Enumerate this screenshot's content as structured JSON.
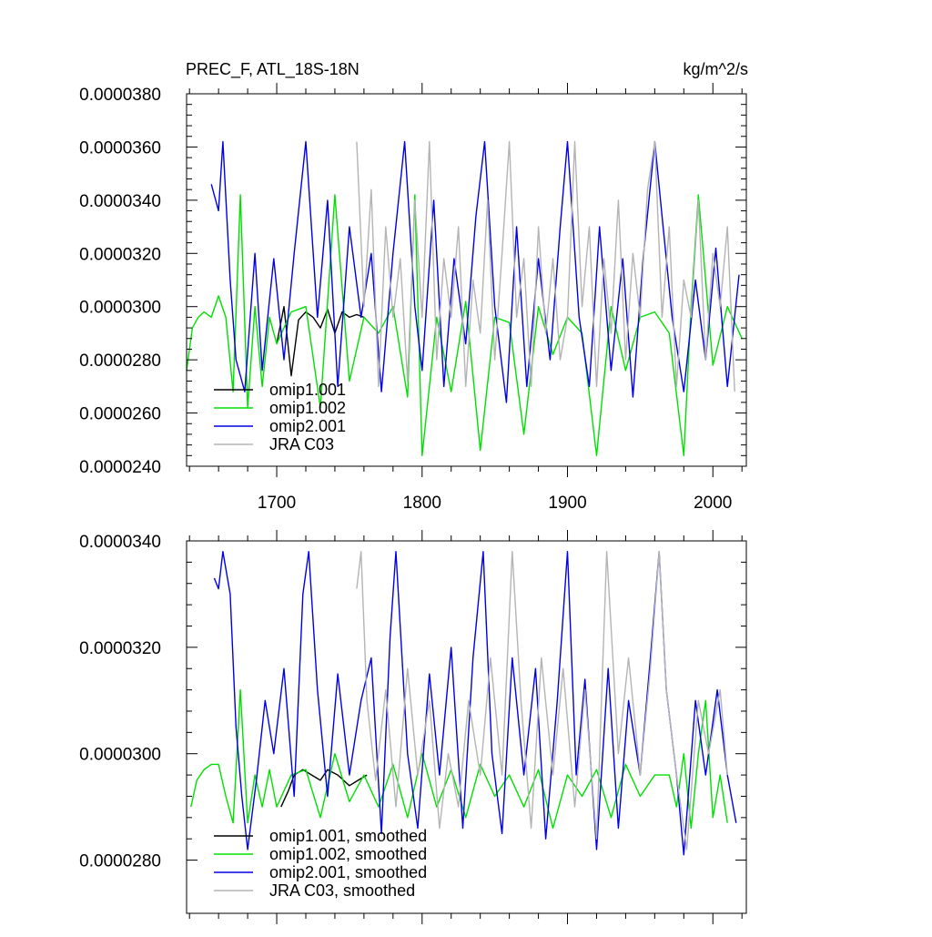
{
  "header": {
    "left_title": "PREC_F, ATL_18S-18N",
    "right_title": "kg/m^2/s"
  },
  "colors": {
    "omip1_001": "#000000",
    "omip1_002": "#00e000",
    "omip2_001": "#0000e6",
    "jra_c03": "#b4b4b4"
  },
  "chart_data": [
    {
      "type": "line",
      "title": "PREC_F, ATL_18S-18N",
      "units_label": "kg/m^2/s",
      "xlim": [
        1638,
        2023
      ],
      "ylim": [
        2.4e-05,
        3.8e-05
      ],
      "x_ticks": [
        1700,
        1800,
        1900,
        2000
      ],
      "x_tick_labels": [
        "1700",
        "1800",
        "1900",
        "2000"
      ],
      "y_ticks": [
        2.4e-05,
        2.6e-05,
        2.8e-05,
        3e-05,
        3.2e-05,
        3.4e-05,
        3.6e-05,
        3.8e-05
      ],
      "y_tick_labels": [
        "0.0000240",
        "0.0000260",
        "0.0000280",
        "0.0000300",
        "0.0000320",
        "0.0000340",
        "0.0000360",
        "0.0000380"
      ],
      "legend_position": "bottom-left",
      "grid": false,
      "series": [
        {
          "name": "omip1.001",
          "color": "#000000",
          "x": [
            1700,
            1705,
            1710,
            1715,
            1720,
            1725,
            1730,
            1735,
            1740,
            1745,
            1750,
            1755,
            1760
          ],
          "y": [
            2.86e-05,
            3e-05,
            2.74e-05,
            2.95e-05,
            2.98e-05,
            2.96e-05,
            2.92e-05,
            2.99e-05,
            2.9e-05,
            2.98e-05,
            2.96e-05,
            2.97e-05,
            2.96e-05
          ]
        },
        {
          "name": "omip1.002",
          "color": "#00e000",
          "x": [
            1638,
            1642,
            1646,
            1650,
            1655,
            1660,
            1665,
            1670,
            1675,
            1680,
            1685,
            1690,
            1695,
            1700,
            1710,
            1720,
            1730,
            1740,
            1750,
            1760,
            1770,
            1780,
            1790,
            1795,
            1800,
            1810,
            1820,
            1830,
            1840,
            1850,
            1860,
            1870,
            1880,
            1890,
            1900,
            1910,
            1920,
            1930,
            1940,
            1950,
            1960,
            1970,
            1980,
            1985,
            1990,
            2000,
            2010,
            2020
          ],
          "y": [
            2.76e-05,
            2.92e-05,
            2.96e-05,
            2.98e-05,
            2.96e-05,
            3.04e-05,
            2.96e-05,
            2.68e-05,
            3.42e-05,
            2.62e-05,
            3e-05,
            2.7e-05,
            2.96e-05,
            2.86e-05,
            2.98e-05,
            3e-05,
            2.62e-05,
            3.42e-05,
            2.72e-05,
            2.96e-05,
            2.9e-05,
            3e-05,
            2.66e-05,
            3.42e-05,
            2.44e-05,
            2.96e-05,
            2.68e-05,
            3.02e-05,
            2.46e-05,
            2.96e-05,
            2.94e-05,
            2.52e-05,
            3e-05,
            2.82e-05,
            2.96e-05,
            2.9e-05,
            2.44e-05,
            3e-05,
            2.76e-05,
            2.96e-05,
            2.98e-05,
            2.9e-05,
            2.44e-05,
            3e-05,
            3.42e-05,
            2.78e-05,
            3e-05,
            2.88e-05
          ]
        },
        {
          "name": "omip2.001",
          "color": "#0000e6",
          "x": [
            1655,
            1660,
            1663,
            1668,
            1672,
            1678,
            1685,
            1690,
            1698,
            1705,
            1712,
            1720,
            1728,
            1735,
            1742,
            1750,
            1758,
            1765,
            1772,
            1780,
            1788,
            1795,
            1800,
            1808,
            1815,
            1822,
            1830,
            1837,
            1843,
            1850,
            1858,
            1865,
            1872,
            1880,
            1888,
            1895,
            1900,
            1908,
            1915,
            1922,
            1930,
            1938,
            1945,
            1952,
            1960,
            1965,
            1972,
            1980,
            1988,
            1995,
            2002,
            2010,
            2018
          ],
          "y": [
            3.46e-05,
            3.36e-05,
            3.62e-05,
            3.1e-05,
            2.8e-05,
            2.68e-05,
            3.2e-05,
            2.76e-05,
            3.18e-05,
            2.8e-05,
            3.2e-05,
            3.62e-05,
            2.96e-05,
            3.4e-05,
            2.7e-05,
            3.3e-05,
            2.96e-05,
            3.2e-05,
            2.68e-05,
            3.2e-05,
            3.62e-05,
            3e-05,
            2.76e-05,
            3.4e-05,
            2.7e-05,
            3.18e-05,
            2.86e-05,
            3.34e-05,
            3.62e-05,
            3e-05,
            2.64e-05,
            3.3e-05,
            2.7e-05,
            3.18e-05,
            2.8e-05,
            3.3e-05,
            3.62e-05,
            2.96e-05,
            2.7e-05,
            3.3e-05,
            2.76e-05,
            3.18e-05,
            2.66e-05,
            3.18e-05,
            3.62e-05,
            3.34e-05,
            2.96e-05,
            2.68e-05,
            3.1e-05,
            2.8e-05,
            3.22e-05,
            2.7e-05,
            3.12e-05
          ]
        },
        {
          "name": "JRA C03",
          "color": "#b4b4b4",
          "x": [
            1755,
            1760,
            1765,
            1770,
            1775,
            1780,
            1785,
            1790,
            1795,
            1800,
            1805,
            1810,
            1815,
            1820,
            1825,
            1830,
            1835,
            1840,
            1845,
            1850,
            1855,
            1860,
            1865,
            1870,
            1875,
            1880,
            1885,
            1890,
            1895,
            1900,
            1905,
            1910,
            1915,
            1920,
            1925,
            1930,
            1935,
            1940,
            1945,
            1950,
            1955,
            1960,
            1965,
            1970,
            1975,
            1980,
            1985,
            1990,
            1995,
            2000,
            2005,
            2010,
            2015
          ],
          "y": [
            3.62e-05,
            3e-05,
            3.44e-05,
            2.7e-05,
            3.3e-05,
            2.96e-05,
            3.18e-05,
            2.72e-05,
            3.4e-05,
            2.96e-05,
            3.62e-05,
            2.8e-05,
            3.18e-05,
            2.96e-05,
            3.3e-05,
            2.7e-05,
            3.1e-05,
            2.9e-05,
            3.4e-05,
            2.8e-05,
            3.2e-05,
            3.62e-05,
            2.96e-05,
            3.18e-05,
            2.7e-05,
            3.3e-05,
            2.9e-05,
            3.18e-05,
            2.8e-05,
            2.96e-05,
            3.62e-05,
            3e-05,
            3.3e-05,
            2.7e-05,
            3.18e-05,
            2.9e-05,
            3.4e-05,
            2.8e-05,
            3.2e-05,
            2.96e-05,
            3.44e-05,
            3.62e-05,
            2.96e-05,
            3.3e-05,
            2.7e-05,
            3.1e-05,
            2.96e-05,
            3.4e-05,
            2.8e-05,
            3.2e-05,
            3e-05,
            3.3e-05,
            2.68e-05
          ]
        }
      ]
    },
    {
      "type": "line",
      "xlim": [
        1638,
        2023
      ],
      "ylim": [
        2.7e-05,
        3.4e-05
      ],
      "x_ticks": [
        1700,
        1800,
        1900,
        2000
      ],
      "y_ticks": [
        2.8e-05,
        3e-05,
        3.2e-05,
        3.4e-05
      ],
      "y_tick_labels": [
        "0.0000280",
        "0.0000300",
        "0.0000320",
        "0.0000340"
      ],
      "legend_position": "bottom-left",
      "grid": false,
      "series": [
        {
          "name": "omip1.001, smoothed",
          "color": "#000000",
          "x": [
            1703,
            1708,
            1712,
            1718,
            1724,
            1730,
            1735,
            1742,
            1750,
            1756,
            1762
          ],
          "y": [
            2.9e-05,
            2.93e-05,
            2.96e-05,
            2.97e-05,
            2.96e-05,
            2.95e-05,
            2.97e-05,
            2.96e-05,
            2.94e-05,
            2.95e-05,
            2.96e-05
          ]
        },
        {
          "name": "omip1.002, smoothed",
          "color": "#00e000",
          "x": [
            1641,
            1645,
            1650,
            1655,
            1660,
            1665,
            1670,
            1675,
            1680,
            1685,
            1690,
            1695,
            1700,
            1710,
            1720,
            1730,
            1740,
            1750,
            1760,
            1770,
            1780,
            1790,
            1800,
            1810,
            1820,
            1830,
            1840,
            1850,
            1860,
            1870,
            1880,
            1890,
            1900,
            1910,
            1920,
            1930,
            1940,
            1950,
            1960,
            1970,
            1975,
            1980,
            1985,
            1990,
            1995,
            2000,
            2005,
            2010
          ],
          "y": [
            2.9e-05,
            2.95e-05,
            2.97e-05,
            2.98e-05,
            2.98e-05,
            2.92e-05,
            2.87e-05,
            3.12e-05,
            2.87e-05,
            2.96e-05,
            2.9e-05,
            2.97e-05,
            2.9e-05,
            2.96e-05,
            2.97e-05,
            2.88e-05,
            3e-05,
            2.91e-05,
            2.96e-05,
            2.9e-05,
            2.98e-05,
            2.88e-05,
            3e-05,
            2.9e-05,
            2.97e-05,
            2.88e-05,
            2.98e-05,
            2.92e-05,
            2.96e-05,
            2.9e-05,
            2.97e-05,
            2.86e-05,
            2.96e-05,
            2.92e-05,
            2.97e-05,
            2.88e-05,
            2.98e-05,
            2.92e-05,
            2.96e-05,
            2.96e-05,
            2.9e-05,
            3e-05,
            2.86e-05,
            3e-05,
            3.1e-05,
            2.88e-05,
            2.96e-05,
            2.87e-05
          ]
        },
        {
          "name": "omip2.001, smoothed",
          "color": "#0000e6",
          "x": [
            1657,
            1660,
            1663,
            1668,
            1672,
            1676,
            1680,
            1686,
            1692,
            1698,
            1705,
            1712,
            1718,
            1722,
            1728,
            1735,
            1742,
            1750,
            1758,
            1765,
            1772,
            1778,
            1782,
            1790,
            1797,
            1805,
            1812,
            1820,
            1828,
            1835,
            1842,
            1848,
            1855,
            1862,
            1870,
            1878,
            1885,
            1893,
            1900,
            1906,
            1912,
            1920,
            1928,
            1935,
            1942,
            1950,
            1957,
            1963,
            1968,
            1975,
            1980,
            1988,
            1995,
            2003,
            2010,
            2016
          ],
          "y": [
            3.33e-05,
            3.31e-05,
            3.38e-05,
            3.3e-05,
            3.05e-05,
            2.92e-05,
            2.82e-05,
            2.95e-05,
            3.1e-05,
            3e-05,
            3.16e-05,
            2.92e-05,
            3.3e-05,
            3.38e-05,
            3.12e-05,
            2.92e-05,
            3.15e-05,
            2.96e-05,
            3.1e-05,
            3.18e-05,
            2.85e-05,
            3.22e-05,
            3.38e-05,
            3e-05,
            2.86e-05,
            3.15e-05,
            2.96e-05,
            3.2e-05,
            2.86e-05,
            3.18e-05,
            3.38e-05,
            3e-05,
            2.85e-05,
            3.18e-05,
            2.96e-05,
            3.16e-05,
            2.84e-05,
            3.1e-05,
            3.38e-05,
            2.96e-05,
            3.14e-05,
            2.82e-05,
            3.16e-05,
            2.86e-05,
            3.1e-05,
            2.96e-05,
            3.18e-05,
            3.38e-05,
            3.12e-05,
            2.96e-05,
            2.81e-05,
            3.1e-05,
            2.96e-05,
            3.12e-05,
            2.96e-05,
            2.87e-05
          ]
        },
        {
          "name": "JRA C03, smoothed",
          "color": "#b4b4b4",
          "x": [
            1755,
            1758,
            1762,
            1768,
            1775,
            1782,
            1790,
            1797,
            1805,
            1812,
            1818,
            1825,
            1832,
            1840,
            1847,
            1855,
            1862,
            1868,
            1875,
            1882,
            1890,
            1897,
            1905,
            1912,
            1920,
            1927,
            1935,
            1942,
            1950,
            1957,
            1963,
            1968,
            1975,
            1982,
            1990,
            1997,
            2005,
            2010
          ],
          "y": [
            3.31e-05,
            3.38e-05,
            3.1e-05,
            2.95e-05,
            3.12e-05,
            2.9e-05,
            3.16e-05,
            2.96e-05,
            3.1e-05,
            2.86e-05,
            3e-05,
            2.9e-05,
            3.1e-05,
            2.96e-05,
            3.18e-05,
            2.96e-05,
            3.38e-05,
            3.1e-05,
            2.86e-05,
            3.18e-05,
            2.96e-05,
            3.16e-05,
            2.9e-05,
            3.12e-05,
            2.84e-05,
            3.38e-05,
            3e-05,
            3.18e-05,
            2.96e-05,
            3.16e-05,
            3.38e-05,
            3.12e-05,
            2.96e-05,
            2.82e-05,
            3.1e-05,
            3e-05,
            3.12e-05,
            2.96e-05
          ]
        }
      ]
    }
  ]
}
